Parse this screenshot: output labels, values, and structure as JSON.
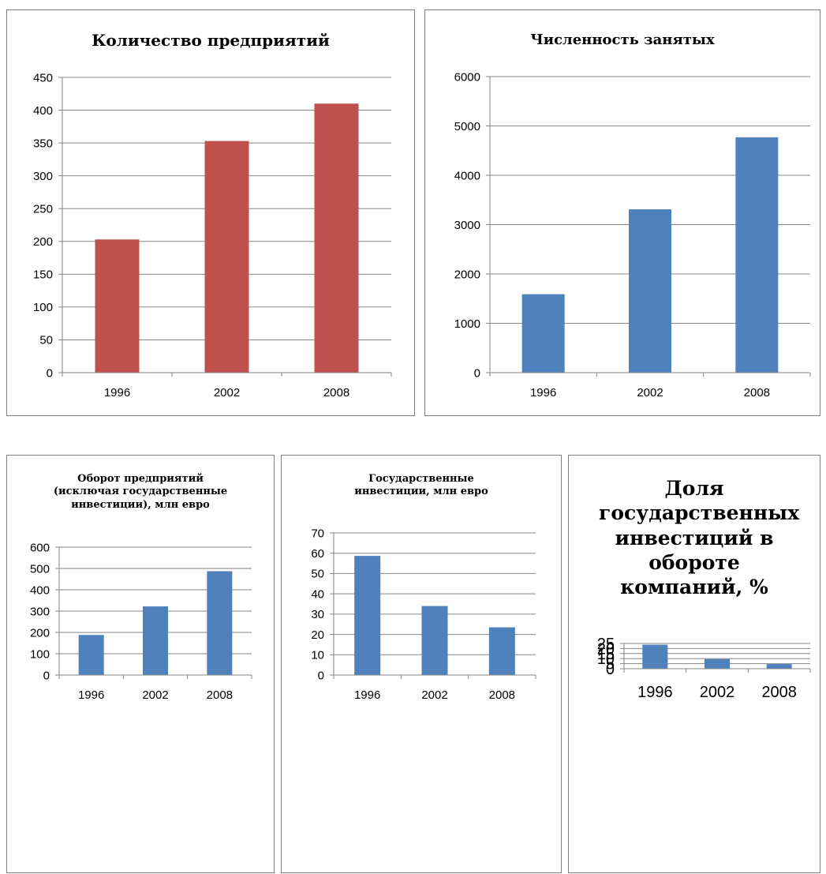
{
  "colors": {
    "red_bar": "#c0504d",
    "blue_bar": "#4f81bd",
    "grid": "#868686",
    "border": "#7f7f7f"
  },
  "chart_data": [
    {
      "type": "bar",
      "title": "Количество предприятий",
      "categories": [
        "1996",
        "2002",
        "2008"
      ],
      "values": [
        203,
        353,
        410
      ],
      "ylim": [
        0,
        450
      ],
      "yticks": [
        "0",
        "50",
        "100",
        "150",
        "200",
        "250",
        "300",
        "350",
        "400",
        "450"
      ],
      "grid": true,
      "color": "#c0504d"
    },
    {
      "type": "bar",
      "title": "Численность занятых",
      "categories": [
        "1996",
        "2002",
        "2008"
      ],
      "values": [
        1590,
        3310,
        4770
      ],
      "ylim": [
        0,
        6000
      ],
      "yticks": [
        "0",
        "1000",
        "2000",
        "3000",
        "4000",
        "5000",
        "6000"
      ],
      "grid": true,
      "color": "#4f81bd"
    },
    {
      "type": "bar",
      "title": "Оборот предприятий (исключая государственные инвестиции), млн евро",
      "categories": [
        "1996",
        "2002",
        "2008"
      ],
      "values": [
        188,
        322,
        487
      ],
      "ylim": [
        0,
        600
      ],
      "yticks": [
        "0",
        "100",
        "200",
        "300",
        "400",
        "500",
        "600"
      ],
      "grid": true,
      "color": "#4f81bd"
    },
    {
      "type": "bar",
      "title": "Государственные инвестиции, млн евро",
      "categories": [
        "1996",
        "2002",
        "2008"
      ],
      "values": [
        58.7,
        34.0,
        23.5
      ],
      "ylim": [
        0,
        70
      ],
      "yticks": [
        "0",
        "10",
        "20",
        "30",
        "40",
        "50",
        "60",
        "70"
      ],
      "grid": true,
      "color": "#4f81bd"
    },
    {
      "type": "bar",
      "title": "Доля государственных инвестиций в обороте компаний, %",
      "categories": [
        "1996",
        "2002",
        "2008"
      ],
      "values": [
        23.8,
        9.5,
        4.6
      ],
      "ylim": [
        0,
        25
      ],
      "yticks": [
        "0",
        "5",
        "10",
        "15",
        "20",
        "25"
      ],
      "grid": true,
      "color": "#4f81bd"
    }
  ]
}
